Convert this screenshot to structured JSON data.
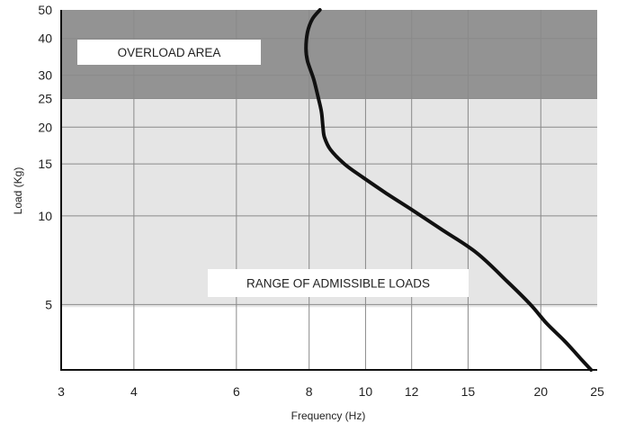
{
  "chart_data": {
    "type": "line",
    "title": "",
    "xlabel": "Frequency  (Hz)",
    "ylabel": "Load (Kg)",
    "x_scale": "log",
    "y_scale": "log",
    "xlim": [
      3,
      25
    ],
    "ylim": [
      3,
      50
    ],
    "x_ticks": [
      3,
      4,
      6,
      8,
      10,
      12,
      15,
      20,
      25
    ],
    "y_ticks": [
      5,
      10,
      15,
      20,
      25,
      30,
      40,
      50
    ],
    "grid": true,
    "regions": [
      {
        "label": "OVERLOAD AREA",
        "y_from": 25,
        "y_to": 50,
        "color": "#939393"
      },
      {
        "label": "RANGE OF ADMISSIBLE LOADS",
        "y_from": 4.9,
        "y_to": 25,
        "color": "#e5e5e5"
      }
    ],
    "series": [
      {
        "color": "#111111",
        "points": [
          [
            24.4,
            3.0
          ],
          [
            23.5,
            3.25
          ],
          [
            22.0,
            3.75
          ],
          [
            20.5,
            4.3
          ],
          [
            19.2,
            5.0
          ],
          [
            17.5,
            6.0
          ],
          [
            15.5,
            7.5
          ],
          [
            13.5,
            9.0
          ],
          [
            12.0,
            10.5
          ],
          [
            10.8,
            12.0
          ],
          [
            9.9,
            13.5
          ],
          [
            9.2,
            15.0
          ],
          [
            8.7,
            16.8
          ],
          [
            8.5,
            18.5
          ],
          [
            8.45,
            20.0
          ],
          [
            8.4,
            22.5
          ],
          [
            8.3,
            25.0
          ],
          [
            8.15,
            29.0
          ],
          [
            7.95,
            33.5
          ],
          [
            7.9,
            37.0
          ],
          [
            7.95,
            42.0
          ],
          [
            8.1,
            46.5
          ],
          [
            8.35,
            50.0
          ]
        ]
      }
    ]
  }
}
